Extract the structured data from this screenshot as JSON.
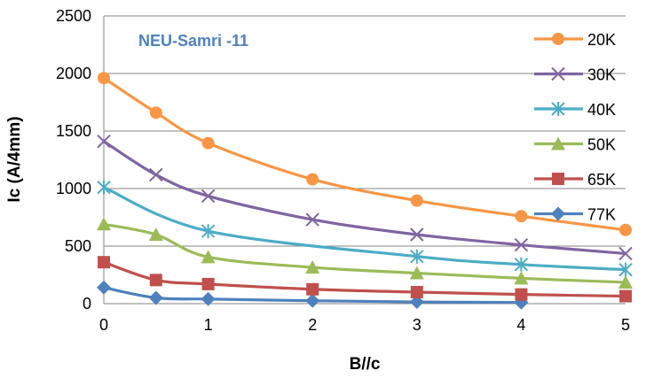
{
  "chart_data": {
    "type": "line",
    "title": "",
    "annotation": "NEU-Samri -11",
    "xlabel": "B//c",
    "ylabel": "Ic (A/4mm)",
    "xlim": [
      0,
      5
    ],
    "ylim": [
      0,
      2500
    ],
    "x_ticks": [
      "0",
      "1",
      "2",
      "3",
      "4",
      "5"
    ],
    "y_ticks": [
      "0",
      "500",
      "1000",
      "1500",
      "2000",
      "2500"
    ],
    "grid": "horizontal",
    "legend_position": "right",
    "smooth": true,
    "series": [
      {
        "name": "20K",
        "color": "#F79646",
        "marker": "circle",
        "x": [
          0,
          0.5,
          1,
          2,
          3,
          4,
          5
        ],
        "y": [
          1960,
          1660,
          1395,
          1080,
          895,
          760,
          640
        ]
      },
      {
        "name": "30K",
        "color": "#8064A2",
        "marker": "x",
        "x": [
          0,
          0.5,
          1,
          2,
          3,
          4,
          5
        ],
        "y": [
          1410,
          1120,
          935,
          730,
          600,
          510,
          435
        ]
      },
      {
        "name": "40K",
        "color": "#4BACC6",
        "marker": "asterisk",
        "x": [
          0,
          1,
          3,
          4,
          5
        ],
        "y": [
          1010,
          630,
          410,
          340,
          295
        ]
      },
      {
        "name": "50K",
        "color": "#9BBB59",
        "marker": "triangle",
        "x": [
          0,
          0.5,
          1,
          2,
          3,
          4,
          5
        ],
        "y": [
          690,
          600,
          405,
          315,
          265,
          220,
          185
        ]
      },
      {
        "name": "65K",
        "color": "#C0504D",
        "marker": "square",
        "x": [
          0,
          0.5,
          1,
          2,
          3,
          4,
          5
        ],
        "y": [
          360,
          205,
          170,
          125,
          100,
          80,
          65
        ]
      },
      {
        "name": "77K",
        "color": "#4F81BD",
        "marker": "diamond",
        "x": [
          0,
          0.5,
          1,
          2,
          3,
          4
        ],
        "y": [
          140,
          50,
          40,
          25,
          15,
          10
        ]
      }
    ]
  }
}
